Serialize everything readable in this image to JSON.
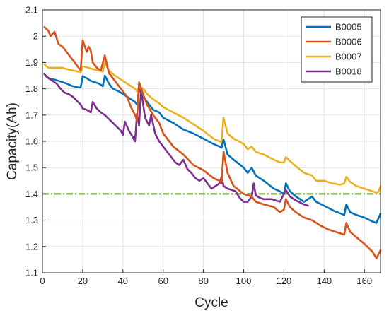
{
  "chart_data": {
    "type": "line",
    "title": "",
    "xlabel": "Cycle",
    "ylabel": "Capacity(Ah)",
    "xlim": [
      0,
      168
    ],
    "ylim": [
      1.1,
      2.1
    ],
    "xticks": [
      0,
      20,
      40,
      60,
      80,
      100,
      120,
      140,
      160
    ],
    "yticks": [
      1.1,
      1.2,
      1.3,
      1.4,
      1.5,
      1.6,
      1.7,
      1.8,
      1.9,
      2.0,
      2.1
    ],
    "ytick_labels": [
      "1.1",
      "1.2",
      "1.3",
      "1.4",
      "1.5",
      "1.6",
      "1.7",
      "1.8",
      "1.9",
      "2",
      "2.1"
    ],
    "grid": true,
    "legend_position": "top-right",
    "threshold": {
      "y": 1.4,
      "color": "#77ac30",
      "style": "dash-dot"
    },
    "series": [
      {
        "name": "B0005",
        "color": "#0072bd",
        "points": [
          [
            1,
            1.856
          ],
          [
            2,
            1.846
          ],
          [
            4,
            1.836
          ],
          [
            6,
            1.835
          ],
          [
            8,
            1.83
          ],
          [
            10,
            1.825
          ],
          [
            12,
            1.82
          ],
          [
            15,
            1.81
          ],
          [
            18,
            1.805
          ],
          [
            19,
            1.805
          ],
          [
            20,
            1.848
          ],
          [
            22,
            1.84
          ],
          [
            24,
            1.83
          ],
          [
            26,
            1.825
          ],
          [
            28,
            1.82
          ],
          [
            30,
            1.81
          ],
          [
            31,
            1.85
          ],
          [
            33,
            1.82
          ],
          [
            35,
            1.8
          ],
          [
            38,
            1.79
          ],
          [
            40,
            1.78
          ],
          [
            44,
            1.76
          ],
          [
            46,
            1.75
          ],
          [
            47,
            1.74
          ],
          [
            48,
            1.8
          ],
          [
            50,
            1.77
          ],
          [
            52,
            1.75
          ],
          [
            55,
            1.72
          ],
          [
            58,
            1.71
          ],
          [
            60,
            1.69
          ],
          [
            65,
            1.67
          ],
          [
            70,
            1.645
          ],
          [
            75,
            1.63
          ],
          [
            80,
            1.61
          ],
          [
            85,
            1.59
          ],
          [
            88,
            1.58
          ],
          [
            89,
            1.575
          ],
          [
            90,
            1.607
          ],
          [
            92,
            1.55
          ],
          [
            95,
            1.53
          ],
          [
            100,
            1.5
          ],
          [
            102,
            1.48
          ],
          [
            104,
            1.5
          ],
          [
            106,
            1.47
          ],
          [
            110,
            1.45
          ],
          [
            115,
            1.42
          ],
          [
            118,
            1.41
          ],
          [
            120,
            1.4
          ],
          [
            121,
            1.44
          ],
          [
            123,
            1.41
          ],
          [
            126,
            1.39
          ],
          [
            130,
            1.37
          ],
          [
            134,
            1.39
          ],
          [
            136,
            1.37
          ],
          [
            140,
            1.355
          ],
          [
            145,
            1.335
          ],
          [
            150,
            1.32
          ],
          [
            151,
            1.36
          ],
          [
            153,
            1.33
          ],
          [
            156,
            1.32
          ],
          [
            160,
            1.31
          ],
          [
            164,
            1.295
          ],
          [
            166,
            1.29
          ],
          [
            168,
            1.325
          ]
        ]
      },
      {
        "name": "B0006",
        "color": "#d95319",
        "points": [
          [
            1,
            2.035
          ],
          [
            3,
            2.02
          ],
          [
            4,
            2.0
          ],
          [
            6,
            2.017
          ],
          [
            8,
            1.97
          ],
          [
            10,
            1.96
          ],
          [
            12,
            1.94
          ],
          [
            15,
            1.91
          ],
          [
            18,
            1.88
          ],
          [
            19,
            1.87
          ],
          [
            20,
            1.985
          ],
          [
            22,
            1.94
          ],
          [
            23,
            1.96
          ],
          [
            24,
            1.945
          ],
          [
            25,
            1.9
          ],
          [
            27,
            1.88
          ],
          [
            29,
            1.87
          ],
          [
            31,
            1.927
          ],
          [
            33,
            1.86
          ],
          [
            35,
            1.84
          ],
          [
            38,
            1.81
          ],
          [
            40,
            1.79
          ],
          [
            42,
            1.77
          ],
          [
            44,
            1.73
          ],
          [
            46,
            1.7
          ],
          [
            47,
            1.68
          ],
          [
            48,
            1.825
          ],
          [
            50,
            1.78
          ],
          [
            52,
            1.74
          ],
          [
            55,
            1.7
          ],
          [
            58,
            1.67
          ],
          [
            60,
            1.63
          ],
          [
            65,
            1.58
          ],
          [
            70,
            1.55
          ],
          [
            75,
            1.51
          ],
          [
            80,
            1.49
          ],
          [
            85,
            1.46
          ],
          [
            88,
            1.45
          ],
          [
            89,
            1.44
          ],
          [
            90,
            1.56
          ],
          [
            92,
            1.48
          ],
          [
            95,
            1.43
          ],
          [
            100,
            1.4
          ],
          [
            104,
            1.39
          ],
          [
            106,
            1.37
          ],
          [
            110,
            1.36
          ],
          [
            115,
            1.35
          ],
          [
            118,
            1.33
          ],
          [
            120,
            1.34
          ],
          [
            121,
            1.38
          ],
          [
            123,
            1.35
          ],
          [
            126,
            1.33
          ],
          [
            130,
            1.31
          ],
          [
            134,
            1.3
          ],
          [
            138,
            1.28
          ],
          [
            142,
            1.265
          ],
          [
            146,
            1.255
          ],
          [
            150,
            1.245
          ],
          [
            151,
            1.29
          ],
          [
            153,
            1.255
          ],
          [
            156,
            1.235
          ],
          [
            160,
            1.21
          ],
          [
            164,
            1.18
          ],
          [
            166,
            1.155
          ],
          [
            167,
            1.17
          ],
          [
            168,
            1.185
          ]
        ]
      },
      {
        "name": "B0007",
        "color": "#edb120",
        "points": [
          [
            1,
            1.892
          ],
          [
            3,
            1.88
          ],
          [
            6,
            1.88
          ],
          [
            10,
            1.88
          ],
          [
            12,
            1.875
          ],
          [
            15,
            1.87
          ],
          [
            18,
            1.865
          ],
          [
            19,
            1.86
          ],
          [
            20,
            1.885
          ],
          [
            22,
            1.882
          ],
          [
            24,
            1.877
          ],
          [
            26,
            1.873
          ],
          [
            28,
            1.87
          ],
          [
            30,
            1.865
          ],
          [
            31,
            1.9
          ],
          [
            33,
            1.87
          ],
          [
            35,
            1.855
          ],
          [
            38,
            1.84
          ],
          [
            40,
            1.83
          ],
          [
            44,
            1.81
          ],
          [
            46,
            1.8
          ],
          [
            47,
            1.79
          ],
          [
            48,
            1.81
          ],
          [
            50,
            1.8
          ],
          [
            52,
            1.78
          ],
          [
            55,
            1.76
          ],
          [
            58,
            1.745
          ],
          [
            60,
            1.73
          ],
          [
            65,
            1.71
          ],
          [
            70,
            1.69
          ],
          [
            75,
            1.665
          ],
          [
            80,
            1.64
          ],
          [
            85,
            1.61
          ],
          [
            88,
            1.6
          ],
          [
            89,
            1.595
          ],
          [
            90,
            1.69
          ],
          [
            92,
            1.63
          ],
          [
            95,
            1.61
          ],
          [
            100,
            1.59
          ],
          [
            102,
            1.57
          ],
          [
            104,
            1.58
          ],
          [
            106,
            1.56
          ],
          [
            110,
            1.55
          ],
          [
            115,
            1.53
          ],
          [
            118,
            1.52
          ],
          [
            120,
            1.52
          ],
          [
            121,
            1.54
          ],
          [
            123,
            1.525
          ],
          [
            126,
            1.505
          ],
          [
            130,
            1.48
          ],
          [
            134,
            1.47
          ],
          [
            136,
            1.45
          ],
          [
            140,
            1.45
          ],
          [
            144,
            1.44
          ],
          [
            148,
            1.435
          ],
          [
            150,
            1.44
          ],
          [
            151,
            1.465
          ],
          [
            153,
            1.445
          ],
          [
            156,
            1.43
          ],
          [
            160,
            1.42
          ],
          [
            164,
            1.41
          ],
          [
            166,
            1.405
          ],
          [
            167,
            1.408
          ],
          [
            168,
            1.43
          ]
        ]
      },
      {
        "name": "B0018",
        "color": "#7e2f8e",
        "points": [
          [
            1,
            1.855
          ],
          [
            3,
            1.84
          ],
          [
            5,
            1.83
          ],
          [
            7,
            1.82
          ],
          [
            9,
            1.8
          ],
          [
            11,
            1.785
          ],
          [
            13,
            1.78
          ],
          [
            15,
            1.77
          ],
          [
            17,
            1.755
          ],
          [
            19,
            1.74
          ],
          [
            20,
            1.725
          ],
          [
            22,
            1.72
          ],
          [
            24,
            1.71
          ],
          [
            25,
            1.75
          ],
          [
            27,
            1.725
          ],
          [
            29,
            1.71
          ],
          [
            31,
            1.7
          ],
          [
            33,
            1.685
          ],
          [
            35,
            1.67
          ],
          [
            37,
            1.655
          ],
          [
            39,
            1.64
          ],
          [
            40,
            1.625
          ],
          [
            41,
            1.675
          ],
          [
            43,
            1.64
          ],
          [
            45,
            1.615
          ],
          [
            46,
            1.6
          ],
          [
            47,
            1.705
          ],
          [
            48,
            1.66
          ],
          [
            49,
            1.795
          ],
          [
            51,
            1.69
          ],
          [
            53,
            1.66
          ],
          [
            54,
            1.7
          ],
          [
            56,
            1.63
          ],
          [
            58,
            1.6
          ],
          [
            60,
            1.58
          ],
          [
            62,
            1.56
          ],
          [
            64,
            1.54
          ],
          [
            66,
            1.52
          ],
          [
            68,
            1.51
          ],
          [
            70,
            1.53
          ],
          [
            72,
            1.495
          ],
          [
            74,
            1.48
          ],
          [
            76,
            1.46
          ],
          [
            78,
            1.45
          ],
          [
            80,
            1.46
          ],
          [
            82,
            1.44
          ],
          [
            84,
            1.42
          ],
          [
            86,
            1.43
          ],
          [
            88,
            1.44
          ],
          [
            89,
            1.465
          ],
          [
            90,
            1.43
          ],
          [
            92,
            1.42
          ],
          [
            94,
            1.415
          ],
          [
            96,
            1.41
          ],
          [
            98,
            1.385
          ],
          [
            100,
            1.37
          ],
          [
            102,
            1.37
          ],
          [
            104,
            1.39
          ],
          [
            105,
            1.44
          ],
          [
            106,
            1.395
          ],
          [
            108,
            1.385
          ],
          [
            110,
            1.38
          ],
          [
            114,
            1.38
          ],
          [
            118,
            1.37
          ],
          [
            121,
            1.415
          ],
          [
            123,
            1.39
          ],
          [
            126,
            1.375
          ],
          [
            130,
            1.36
          ],
          [
            132,
            1.355
          ]
        ]
      }
    ]
  }
}
